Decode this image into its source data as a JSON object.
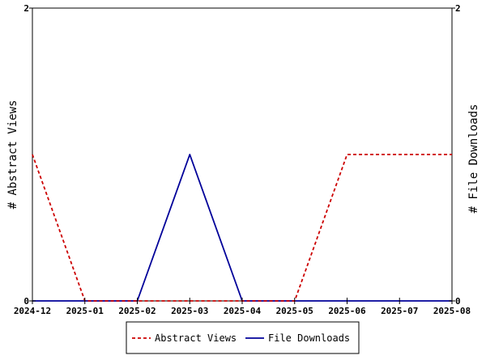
{
  "chart_data": {
    "type": "line",
    "x": [
      "2024-12",
      "2025-01",
      "2025-02",
      "2025-03",
      "2025-04",
      "2025-05",
      "2025-06",
      "2025-07",
      "2025-08"
    ],
    "series": [
      {
        "name": "Abstract Views",
        "axis": "left",
        "color": "#cc0000",
        "style": "dashed",
        "values": [
          1,
          0,
          0,
          0,
          0,
          0,
          1,
          1,
          1
        ]
      },
      {
        "name": "File Downloads",
        "axis": "right",
        "color": "#000099",
        "style": "solid",
        "values": [
          0,
          0,
          0,
          1,
          0,
          0,
          0,
          0,
          0
        ]
      }
    ],
    "ylabel_left": "# Abstract Views",
    "ylabel_right": "# File Downloads",
    "ylim_left": [
      0,
      2
    ],
    "ylim_right": [
      0,
      2
    ],
    "yticks_left": [
      "0",
      "2"
    ],
    "yticks_right": [
      "0",
      "2"
    ],
    "legend": {
      "position": "bottom-center",
      "entries": [
        "Abstract Views",
        "File Downloads"
      ]
    },
    "grid": false
  }
}
